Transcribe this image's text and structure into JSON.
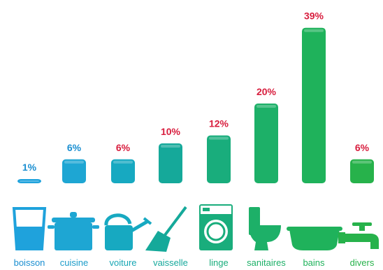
{
  "chart_data": {
    "type": "bar",
    "categories": [
      "boisson",
      "cuisine",
      "voiture",
      "vaisselle",
      "linge",
      "sanitaires",
      "bains",
      "divers"
    ],
    "values": [
      1,
      6,
      6,
      10,
      12,
      20,
      39,
      6
    ],
    "value_labels": [
      "1%",
      "6%",
      "6%",
      "10%",
      "12%",
      "20%",
      "39%",
      "6%"
    ],
    "unit": "%",
    "ylim": [
      0,
      40
    ],
    "grid": false,
    "bar_colors": [
      "#1fa2dc",
      "#1ea6d3",
      "#17a9c1",
      "#15a99a",
      "#19ad7c",
      "#1db068",
      "#1fb25b",
      "#27b24b"
    ],
    "label_colors": [
      "#1b8fd1",
      "#1b8fd1",
      "#d81e3e",
      "#d81e3e",
      "#d81e3e",
      "#d81e3e",
      "#d81e3e",
      "#d81e3e"
    ],
    "category_label_colors": [
      "#1b8fd1",
      "#1b9cc9",
      "#17a6b4",
      "#16a99c",
      "#19ad7c",
      "#1db068",
      "#1fb25b",
      "#27b24b"
    ],
    "icons": [
      "glass-icon",
      "pot-icon",
      "watering-can-icon",
      "broom-icon",
      "washing-machine-icon",
      "toilet-icon",
      "bathtub-icon",
      "faucet-icon"
    ]
  }
}
